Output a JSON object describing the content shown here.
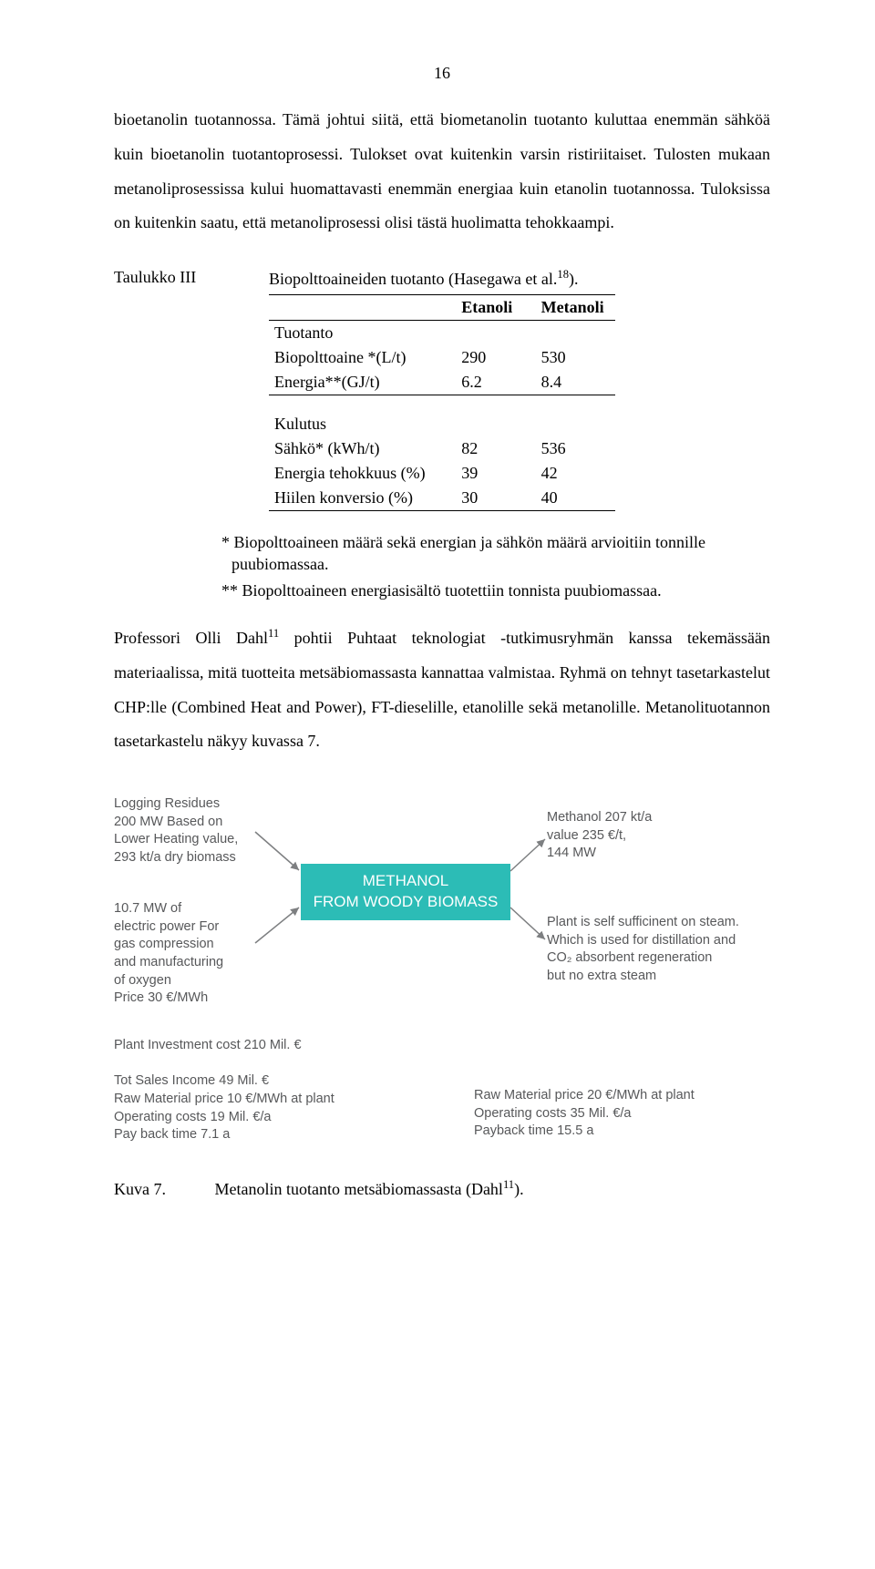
{
  "page_number": "16",
  "para1": "bioetanolin tuotannossa. Tämä johtui siitä, että biometanolin tuotanto kuluttaa enemmän sähköä kuin bioetanolin tuotantoprosessi. Tulokset ovat kuitenkin varsin ristiriitaiset. Tulosten mukaan metanoliprosessissa kului huomattavasti enemmän energiaa kuin etanolin tuotannossa. Tuloksissa on kuitenkin saatu, että metanoliprosessi olisi tästä huolimatta tehokkaampi.",
  "table3": {
    "label": "Taulukko III",
    "caption": "Biopolttoaineiden tuotanto (Hasegawa et al.",
    "caption_sup": "18",
    "caption_tail": ").",
    "col1": "Etanoli",
    "col2": "Metanoli",
    "section1": "Tuotanto",
    "row1_label": "Biopolttoaine *(L/t)",
    "row1_v1": "290",
    "row1_v2": "530",
    "row2_label": "Energia**(GJ/t)",
    "row2_v1": "6.2",
    "row2_v2": "8.4",
    "section2": "Kulutus",
    "row3_label": "Sähkö* (kWh/t)",
    "row3_v1": "82",
    "row3_v2": "536",
    "row4_label": "Energia tehokkuus (%)",
    "row4_v1": "39",
    "row4_v2": "42",
    "row5_label": "Hiilen konversio (%)",
    "row5_v1": "30",
    "row5_v2": "40",
    "footnote1": "* Biopolttoaineen määrä sekä energian ja sähkön määrä arvioitiin tonnille puubiomassaa.",
    "footnote2": "** Biopolttoaineen energiasisältö tuotettiin tonnista puubiomassaa."
  },
  "para2_pre": "Professori Olli Dahl",
  "para2_sup": "11",
  "para2_post": " pohtii Puhtaat teknologiat -tutkimusryhmän kanssa tekemässään materiaalissa, mitä tuotteita metsäbiomassasta kannattaa valmistaa. Ryhmä on tehnyt tasetarkastelut CHP:lle (Combined Heat and Power), FT-dieselille, etanolille sekä metanolille. Metanolituotannon tasetarkastelu näkyy kuvassa 7.",
  "figure": {
    "box_line1": "METHANOL",
    "box_line2": "FROM WOODY BIOMASS",
    "box_color": "#2cbcb6",
    "box_text_color": "#fdfefe",
    "text_color": "#57585a",
    "arrow_color": "#7d7f81",
    "top_left": "Logging Residues\n200 MW Based on\nLower Heating value,\n293 kt/a dry biomass",
    "mid_left": "10.7 MW of\nelectric power For\ngas compression\nand manufacturing\nof oxygen\nPrice 30 €/MWh",
    "top_right": "Methanol 207 kt/a\nvalue 235 €/t,\n144 MW",
    "mid_right": "Plant is self sufficinent on steam.\nWhich is  used for distillation and\nCO₂ absorbent regeneration\nbut no extra steam",
    "bottom_left": "Plant Investment cost 210 Mil. €\n\nTot Sales Income 49 Mil. €\nRaw Material price 10 €/MWh at plant\nOperating costs 19 Mil. €/a\nPay back time 7.1 a",
    "bottom_right": "Raw Material price 20 €/MWh at plant\nOperating costs 35 Mil. €/a\nPayback time 15.5 a",
    "caption_label": "Kuva 7.",
    "caption_text_pre": "Metanolin tuotanto metsäbiomassasta (Dahl",
    "caption_sup": "11",
    "caption_text_post": ")."
  }
}
